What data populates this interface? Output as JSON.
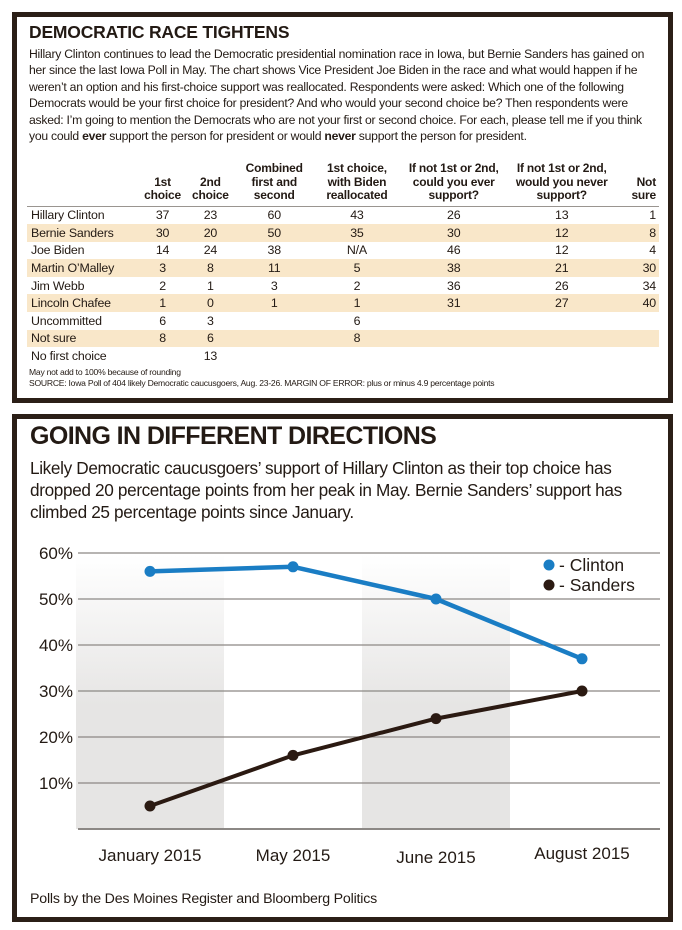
{
  "top_panel": {
    "title": "DEMOCRATIC RACE TIGHTENS",
    "intro_parts": [
      "Hillary Clinton continues to lead the Democratic presidential nomination race in Iowa, but Bernie Sanders has gained on her since the last Iowa Poll in May. The chart shows Vice President Joe Biden in the race and what would happen if he weren’t an option and his first-choice support was reallocated. Respondents were asked: Which one of the following Democrats would be your first choice for president? And who would your second choice be? Then respondents were asked: I’m going to mention the Democrats who are not your first or second choice. For each, please tell me if you think you could ",
      "ever",
      " support the person for president or would ",
      "never",
      " support the person for president."
    ],
    "table": {
      "headers": [
        "",
        "1st choice",
        "2nd choice",
        "Combined first and second",
        "1st choice, with Biden reallocated",
        "If not 1st or 2nd, could you ever support?",
        "If not 1st or 2nd, would you never support?",
        "Not sure"
      ],
      "header_lines": [
        [
          ""
        ],
        [
          "1st",
          "choice"
        ],
        [
          "2nd",
          "choice"
        ],
        [
          "Combined",
          "first and",
          "second"
        ],
        [
          "1st choice,",
          "with Biden",
          "reallocated"
        ],
        [
          "If not 1st or 2nd,",
          "could you ever",
          "support?"
        ],
        [
          "If not 1st or 2nd,",
          "would you never",
          "support?"
        ],
        [
          "Not",
          "sure"
        ]
      ],
      "rows": [
        [
          "Hillary Clinton",
          "37",
          "23",
          "60",
          "43",
          "26",
          "13",
          "1"
        ],
        [
          "Bernie Sanders",
          "30",
          "20",
          "50",
          "35",
          "30",
          "12",
          "8"
        ],
        [
          "Joe Biden",
          "14",
          "24",
          "38",
          "N/A",
          "46",
          "12",
          "4"
        ],
        [
          "Martin O’Malley",
          "3",
          "8",
          "11",
          "5",
          "38",
          "21",
          "30"
        ],
        [
          "Jim Webb",
          "2",
          "1",
          "3",
          "2",
          "36",
          "26",
          "34"
        ],
        [
          "Lincoln Chafee",
          "1",
          "0",
          "1",
          "1",
          "31",
          "27",
          "40"
        ],
        [
          "Uncommitted",
          "6",
          "3",
          "",
          "6",
          "",
          "",
          ""
        ],
        [
          "Not sure",
          "8",
          "6",
          "",
          "8",
          "",
          "",
          ""
        ],
        [
          "No first choice",
          "",
          "13",
          "",
          "",
          "",
          "",
          ""
        ]
      ],
      "stripe_color": "#f9e7c9"
    },
    "note": "May not add to 100% because of rounding",
    "source": "SOURCE: Iowa Poll of 404 likely Democratic caucusgoers, Aug. 23-26. MARGIN OF ERROR: plus or minus 4.9 percentage points"
  },
  "bottom_panel": {
    "title": "GOING IN DIFFERENT DIRECTIONS",
    "intro": "Likely Democratic caucusgoers’ support of Hillary Clinton as their top choice has dropped 20 percentage points from her peak in May. Bernie Sanders’ support has climbed 25 percentage points since January.",
    "source": "Polls by the Des Moines Register and Bloomberg Politics"
  },
  "colors": {
    "frame": "#2b1f17",
    "clinton": "#1a7dc4",
    "sanders": "#2b1a12",
    "grid": "#8c8885",
    "band": "#e6e5e4"
  },
  "chart_data": {
    "type": "line",
    "title": "GOING IN DIFFERENT DIRECTIONS",
    "xlabel": "",
    "ylabel": "",
    "categories": [
      "January 2015",
      "May 2015",
      "June 2015",
      "August 2015"
    ],
    "series": [
      {
        "name": "Clinton",
        "legend_label": "- Clinton",
        "color": "#1a7dc4",
        "values": [
          56,
          57,
          50,
          37
        ]
      },
      {
        "name": "Sanders",
        "legend_label": "- Sanders",
        "color": "#2b1a12",
        "values": [
          5,
          16,
          24,
          30
        ]
      }
    ],
    "ylim": [
      0,
      60
    ],
    "yticks": [
      10,
      20,
      30,
      40,
      50,
      60
    ],
    "ytick_labels": [
      "10%",
      "20%",
      "30%",
      "40%",
      "50%",
      "60%"
    ],
    "grid": true,
    "shaded_categories": [
      "January 2015",
      "June 2015"
    ],
    "legend_position": "top-right"
  }
}
